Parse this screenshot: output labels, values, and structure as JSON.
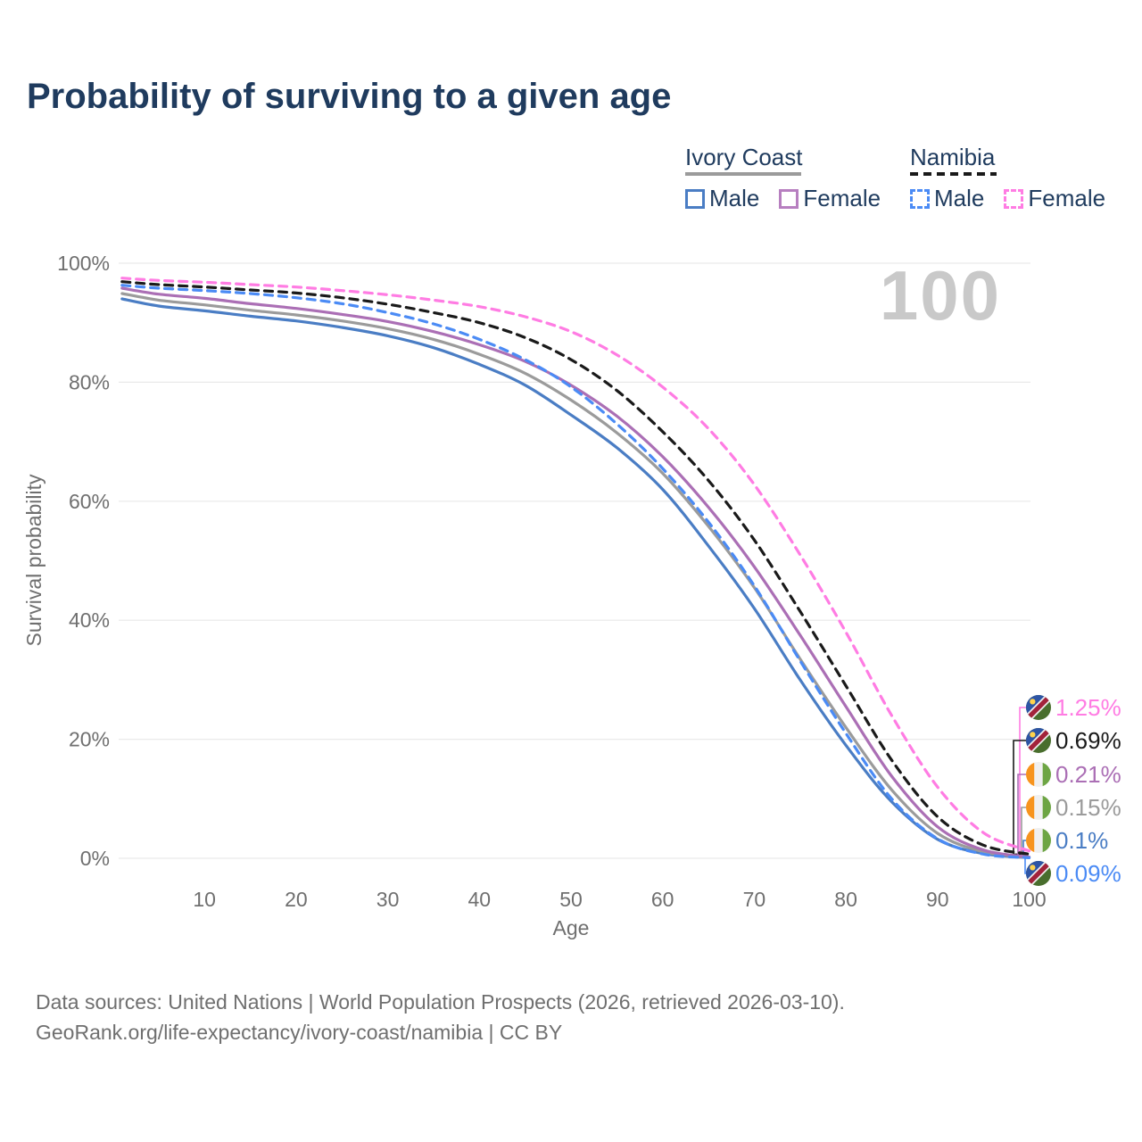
{
  "title": "Probability of surviving to a given age",
  "watermark": "100",
  "legend": {
    "groups": [
      {
        "label": "Ivory Coast",
        "line_style": "solid",
        "underline_color": "#9b9b9b",
        "items": [
          {
            "label": "Male",
            "color": "#4a7dc4",
            "dashed": false
          },
          {
            "label": "Female",
            "color": "#b77fc0",
            "dashed": false
          }
        ]
      },
      {
        "label": "Namibia",
        "line_style": "dashed",
        "underline_color": "#1a1a1a",
        "items": [
          {
            "label": "Male",
            "color": "#4b8bf5",
            "dashed": true
          },
          {
            "label": "Female",
            "color": "#ff7ce3",
            "dashed": true
          }
        ]
      }
    ]
  },
  "chart_data": {
    "type": "line",
    "title": "Probability of surviving to a given age",
    "xlabel": "Age",
    "ylabel": "Survival probability",
    "xlim": [
      0,
      100
    ],
    "ylim": [
      0,
      100
    ],
    "grid": "horizontal",
    "x_ticks": [
      10,
      20,
      30,
      40,
      50,
      60,
      70,
      80,
      90,
      100
    ],
    "y_ticks": [
      0,
      20,
      40,
      60,
      80,
      100
    ],
    "y_tick_labels": [
      "0%",
      "20%",
      "40%",
      "60%",
      "80%",
      "100%"
    ],
    "x": [
      1,
      5,
      10,
      15,
      20,
      25,
      30,
      35,
      40,
      45,
      50,
      55,
      60,
      65,
      70,
      75,
      80,
      85,
      90,
      95,
      100
    ],
    "series": [
      {
        "name": "Ivory Coast Male",
        "color": "#4a7dc4",
        "dashed": false,
        "values": [
          94.0,
          92.8,
          92.0,
          91.1,
          90.3,
          89.2,
          87.8,
          85.8,
          83.0,
          79.5,
          74.5,
          69.0,
          62.0,
          52.5,
          42.0,
          30.0,
          19.0,
          9.5,
          3.2,
          0.8,
          0.1
        ]
      },
      {
        "name": "Ivory Coast Both sexes",
        "color": "#9b9b9b",
        "dashed": false,
        "values": [
          94.9,
          93.8,
          93.0,
          92.1,
          91.3,
          90.3,
          89.0,
          87.2,
          84.7,
          81.5,
          77.0,
          71.5,
          64.7,
          55.8,
          45.5,
          33.5,
          22.0,
          11.5,
          4.2,
          1.1,
          0.15
        ]
      },
      {
        "name": "Ivory Coast Female",
        "color": "#ab6fb5",
        "dashed": false,
        "values": [
          95.8,
          94.8,
          94.1,
          93.2,
          92.4,
          91.4,
          90.2,
          88.5,
          86.3,
          83.5,
          79.5,
          74.3,
          67.5,
          59.0,
          49.0,
          37.5,
          25.5,
          13.8,
          5.3,
          1.4,
          0.21
        ]
      },
      {
        "name": "Namibia Male",
        "color": "#4b8bf5",
        "dashed": true,
        "values": [
          96.3,
          95.8,
          95.4,
          94.9,
          94.2,
          93.2,
          91.7,
          89.8,
          87.2,
          83.8,
          79.2,
          73.0,
          65.5,
          56.5,
          45.8,
          33.2,
          21.0,
          10.0,
          3.3,
          0.7,
          0.09
        ]
      },
      {
        "name": "Namibia Both sexes",
        "color": "#1a1a1a",
        "dashed": true,
        "values": [
          96.9,
          96.4,
          96.0,
          95.5,
          95.0,
          94.2,
          93.1,
          91.7,
          90.0,
          87.5,
          83.8,
          78.6,
          71.7,
          63.5,
          53.5,
          41.5,
          29.0,
          16.5,
          7.0,
          2.2,
          0.69
        ]
      },
      {
        "name": "Namibia Female",
        "color": "#ff7ce3",
        "dashed": true,
        "values": [
          97.5,
          97.1,
          96.8,
          96.4,
          96.0,
          95.4,
          94.7,
          93.8,
          92.7,
          91.0,
          88.5,
          84.6,
          79.2,
          72.2,
          62.8,
          51.0,
          38.0,
          24.0,
          12.0,
          4.3,
          1.25
        ]
      }
    ],
    "end_labels": [
      {
        "text": "1.25%",
        "flag": "namibia",
        "color": "#ff7ce3",
        "series": 5
      },
      {
        "text": "0.69%",
        "flag": "namibia",
        "color": "#1a1a1a",
        "series": 4
      },
      {
        "text": "0.21%",
        "flag": "ivory-coast",
        "color": "#ab6fb5",
        "series": 2
      },
      {
        "text": "0.15%",
        "flag": "ivory-coast",
        "color": "#9b9b9b",
        "series": 1
      },
      {
        "text": "0.1%",
        "flag": "ivory-coast",
        "color": "#4a7dc4",
        "series": 0
      },
      {
        "text": "0.09%",
        "flag": "namibia",
        "color": "#4b8bf5",
        "series": 3
      }
    ]
  },
  "footer": {
    "line1": "Data sources: United Nations | World Population Prospects (2026, retrieved 2026-03-10).",
    "line2": "GeoRank.org/life-expectancy/ivory-coast/namibia | CC BY"
  }
}
